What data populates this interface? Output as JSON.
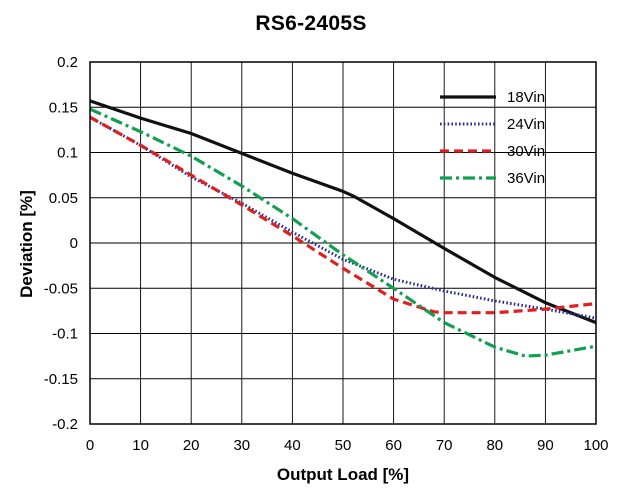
{
  "chart_data": {
    "type": "line",
    "title": "RS6-2405S",
    "xlabel": "Output Load [%]",
    "ylabel": "Deviation [%]",
    "xlim": [
      0,
      100
    ],
    "ylim": [
      -0.2,
      0.2
    ],
    "x_ticks": [
      0,
      10,
      20,
      30,
      40,
      50,
      60,
      70,
      80,
      90,
      100
    ],
    "y_ticks": [
      0.2,
      0.15,
      0.1,
      0.05,
      0,
      -0.05,
      -0.1,
      -0.15,
      -0.2
    ],
    "y_tick_labels": [
      "0.2",
      "0.15",
      "0.1",
      "0.05",
      "0",
      "-0.05",
      "-0.1",
      "-0.15",
      "-0.2"
    ],
    "grid": true,
    "legend_position": "top-right",
    "series": [
      {
        "name": "18Vin",
        "color": "#111111",
        "style": "solid",
        "x": [
          0,
          10,
          20,
          30,
          40,
          50,
          52,
          60,
          70,
          80,
          90,
          100
        ],
        "y": [
          0.157,
          0.138,
          0.121,
          0.099,
          0.077,
          0.057,
          0.052,
          0.027,
          -0.006,
          -0.038,
          -0.066,
          -0.088
        ]
      },
      {
        "name": "24Vin",
        "color": "#2a2f8f",
        "style": "dotted",
        "x": [
          0,
          10,
          20,
          30,
          40,
          50,
          60,
          70,
          80,
          90,
          100
        ],
        "y": [
          0.139,
          0.108,
          0.073,
          0.044,
          0.012,
          -0.018,
          -0.04,
          -0.053,
          -0.064,
          -0.073,
          -0.083
        ]
      },
      {
        "name": "30Vin",
        "color": "#e02020",
        "style": "dashed",
        "x": [
          0,
          10,
          20,
          30,
          40,
          50,
          60,
          68,
          70,
          80,
          90,
          100
        ],
        "y": [
          0.139,
          0.108,
          0.075,
          0.042,
          0.008,
          -0.028,
          -0.062,
          -0.076,
          -0.077,
          -0.077,
          -0.073,
          -0.067
        ]
      },
      {
        "name": "36Vin",
        "color": "#10a050",
        "style": "dashdot",
        "x": [
          0,
          10,
          20,
          30,
          40,
          50,
          60,
          70,
          80,
          86,
          90,
          100
        ],
        "y": [
          0.148,
          0.123,
          0.096,
          0.063,
          0.027,
          -0.013,
          -0.05,
          -0.088,
          -0.115,
          -0.125,
          -0.124,
          -0.114
        ]
      }
    ]
  }
}
